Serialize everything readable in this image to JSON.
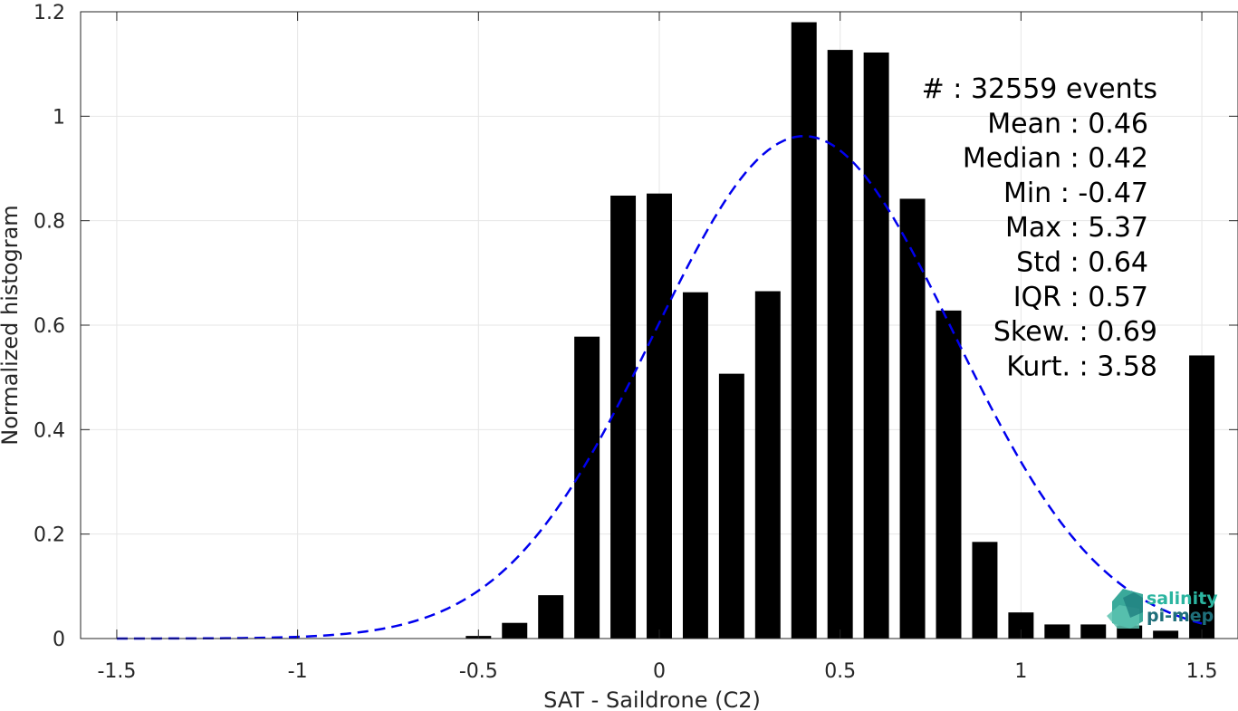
{
  "chart_data": {
    "type": "bar",
    "xlabel": "SAT - Saildrone (C2)",
    "ylabel": "Normalized histogram",
    "xlim": [
      -1.6,
      1.6
    ],
    "ylim": [
      0,
      1.2
    ],
    "xticks": [
      -1.5,
      -1,
      -0.5,
      0,
      0.5,
      1,
      1.5
    ],
    "xtick_labels": [
      "-1.5",
      "-1",
      "-0.5",
      "0",
      "0.5",
      "1",
      "1.5"
    ],
    "yticks": [
      0,
      0.2,
      0.4,
      0.6,
      0.8,
      1,
      1.2
    ],
    "ytick_labels": [
      "0",
      "0.2",
      "0.4",
      "0.6",
      "0.8",
      "1",
      "1.2"
    ],
    "grid": true,
    "bar_color": "#000000",
    "bars": {
      "x": [
        -0.5,
        -0.4,
        -0.3,
        -0.2,
        -0.1,
        0.0,
        0.1,
        0.2,
        0.3,
        0.4,
        0.5,
        0.6,
        0.7,
        0.8,
        0.9,
        1.0,
        1.1,
        1.2,
        1.3,
        1.4,
        1.5
      ],
      "values": [
        0.005,
        0.03,
        0.083,
        0.578,
        0.848,
        0.852,
        0.663,
        0.507,
        0.665,
        1.18,
        1.127,
        1.122,
        0.842,
        0.628,
        0.185,
        0.05,
        0.027,
        0.027,
        0.025,
        0.015,
        0.542
      ]
    },
    "fit_curve": {
      "style": "dashed",
      "color": "#0000ee",
      "mean": 0.4,
      "std": 0.415,
      "peak": 0.962,
      "x_range": [
        -1.5,
        1.5
      ]
    },
    "stats": [
      {
        "label": "#  : 32559 events"
      },
      {
        "label": "Mean : 0.46"
      },
      {
        "label": "Median : 0.42"
      },
      {
        "label": "Min : -0.47"
      },
      {
        "label": "Max : 5.37"
      },
      {
        "label": "Std : 0.64"
      },
      {
        "label": "IQR : 0.57"
      },
      {
        "label": "Skew. : 0.69"
      },
      {
        "label": "Kurt. : 3.58"
      }
    ]
  },
  "logo": {
    "line1": "salinity",
    "line2": "pi-mep",
    "color1": "#2bb5a0",
    "color2": "#1f6f7a"
  }
}
